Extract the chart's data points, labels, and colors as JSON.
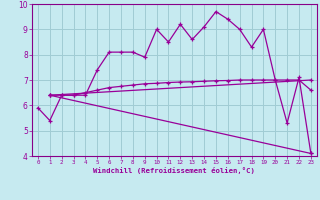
{
  "xlabel": "Windchill (Refroidissement éolien,°C)",
  "background_color": "#c6eaf0",
  "grid_color": "#a0ccd4",
  "line_color": "#990099",
  "spine_color": "#880088",
  "xlim": [
    -0.5,
    23.5
  ],
  "ylim": [
    4,
    10
  ],
  "xticks": [
    0,
    1,
    2,
    3,
    4,
    5,
    6,
    7,
    8,
    9,
    10,
    11,
    12,
    13,
    14,
    15,
    16,
    17,
    18,
    19,
    20,
    21,
    22,
    23
  ],
  "yticks": [
    4,
    5,
    6,
    7,
    8,
    9,
    10
  ],
  "line1_x": [
    0,
    1,
    2,
    3,
    4,
    5,
    6,
    7,
    8,
    9,
    10,
    11,
    12,
    13,
    14,
    15,
    16,
    17,
    18,
    19,
    20,
    21,
    22,
    23
  ],
  "line1_y": [
    5.9,
    5.4,
    6.4,
    6.4,
    6.4,
    7.4,
    8.1,
    8.1,
    8.1,
    7.9,
    9.0,
    8.5,
    9.2,
    8.6,
    9.1,
    9.7,
    9.4,
    9.0,
    8.3,
    9.0,
    7.0,
    5.3,
    7.1,
    4.1
  ],
  "line2_x": [
    1,
    2,
    3,
    4,
    5,
    6,
    7,
    8,
    9,
    10,
    11,
    12,
    13,
    14,
    15,
    16,
    17,
    18,
    19,
    20,
    21,
    22,
    23
  ],
  "line2_y": [
    6.4,
    6.4,
    6.4,
    6.5,
    6.6,
    6.7,
    6.75,
    6.8,
    6.85,
    6.87,
    6.9,
    6.92,
    6.93,
    6.95,
    6.97,
    6.98,
    7.0,
    7.0,
    7.0,
    7.0,
    7.0,
    7.0,
    6.6
  ],
  "line3_x": [
    1,
    23
  ],
  "line3_y": [
    6.4,
    4.1
  ],
  "line4_x": [
    1,
    23
  ],
  "line4_y": [
    6.4,
    7.0
  ]
}
